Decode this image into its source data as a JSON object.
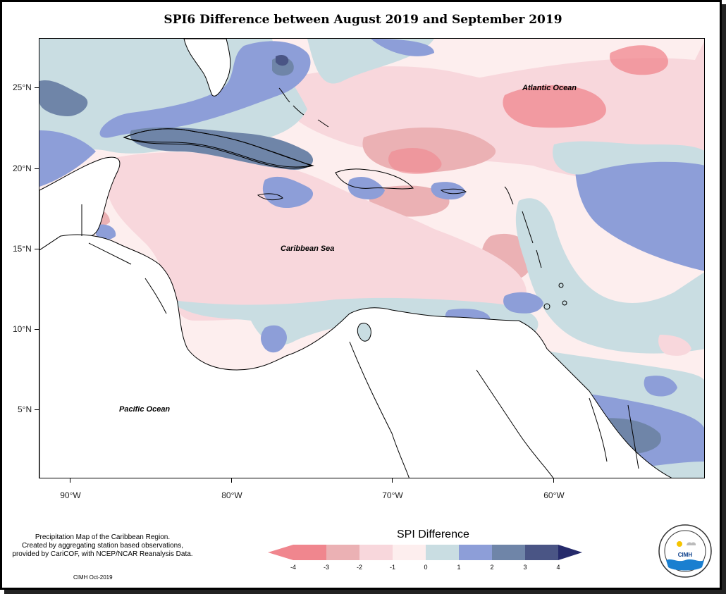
{
  "title": "SPI6 Difference between August 2019 and September 2019",
  "map": {
    "labels": {
      "atlantic": "Atlantic Ocean",
      "caribbean": "Caribbean Sea",
      "pacific": "Pacific Ocean"
    },
    "lat_ticks": [
      "25°N",
      "20°N",
      "15°N",
      "10°N",
      "5°N"
    ],
    "lon_ticks": [
      "90°W",
      "80°W",
      "70°W",
      "60°W"
    ]
  },
  "legend": {
    "title": "SPI Difference",
    "ticks": [
      "-4",
      "-3",
      "-2",
      "-1",
      "0",
      "1",
      "2",
      "3",
      "4"
    ],
    "colors": [
      "#f0868e",
      "#ebb1b4",
      "#f8d7dc",
      "#fdeeee",
      "#c9dde2",
      "#8d9ed8",
      "#6f85a8",
      "#4a5585",
      "#252a6b"
    ]
  },
  "credit": {
    "line1": "Precipitation Map of the Caribbean Region.",
    "line2": "Created by aggregating station based observations,",
    "line3": "provided by CariCOF, with NCEP/NCAR Reanalysis Data.",
    "footer": "CIMH Oct-2019"
  },
  "logo": {
    "text": "CIMH",
    "ring_text": "Caribbean Institute for Meteorology and Hydrology"
  }
}
